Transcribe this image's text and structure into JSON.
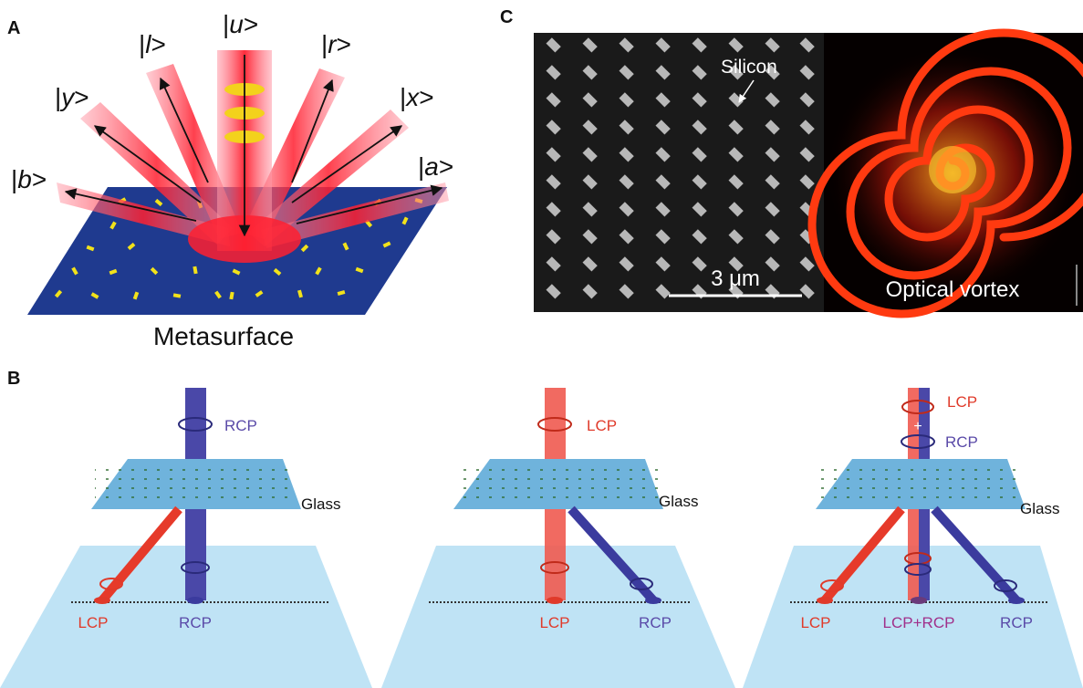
{
  "panel_letters": {
    "a": "A",
    "b": "B",
    "c": "C"
  },
  "panelA": {
    "states": [
      "u",
      "l",
      "r",
      "y",
      "x",
      "b",
      "a"
    ],
    "caption": "Metasurface"
  },
  "panelC": {
    "silicon_label": "Silicon",
    "scale_label": "3 μm",
    "vortex_label": "Optical vortex"
  },
  "panelB": {
    "glass_label": "Glass",
    "case1": {
      "incident": "RCP",
      "out_left": "LCP",
      "out_right": "RCP"
    },
    "case2": {
      "incident": "LCP",
      "out_left": "LCP",
      "out_right": "RCP"
    },
    "case3": {
      "incident_top": "LCP",
      "incident_bottom": "RCP",
      "out_left": "LCP",
      "out_mid": "LCP+RCP",
      "out_right": "RCP"
    }
  },
  "colors": {
    "lcp": "#e03a2a",
    "rcp": "#3b3b9e",
    "metasurface": "#1f3a8f",
    "glass": "#6fb3dc",
    "screen": "#bfe3f5",
    "beam": "#ff3030"
  }
}
